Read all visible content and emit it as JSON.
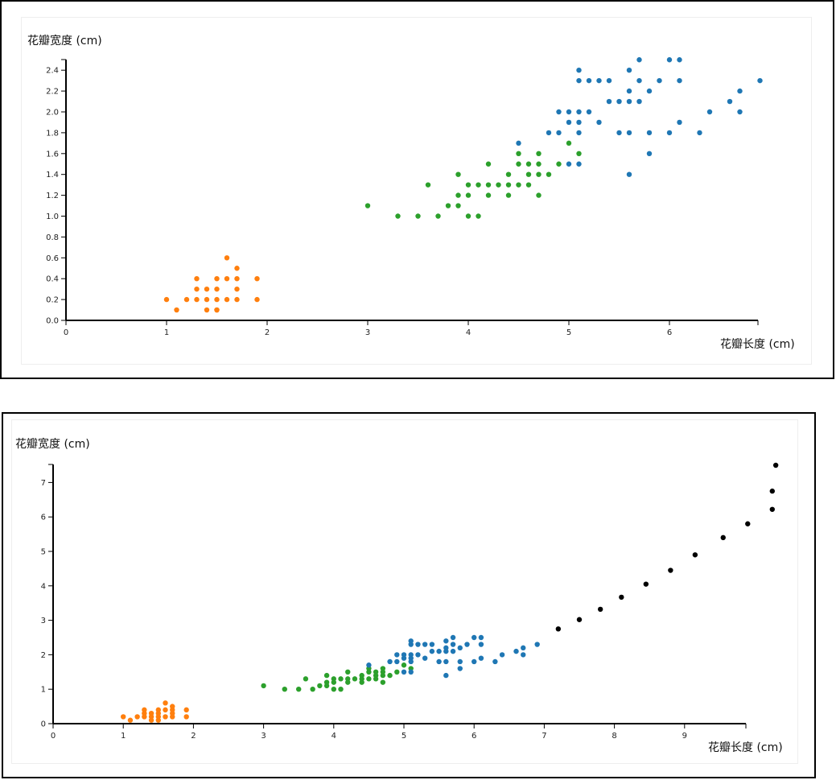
{
  "colors": {
    "setosa": "#ff7f0e",
    "versicolor": "#2ca02c",
    "virginica": "#1f77b4",
    "extra": "#000000"
  },
  "chart_data": [
    {
      "type": "scatter",
      "xlabel": "花瓣长度 (cm)",
      "ylabel": "花瓣宽度 (cm)",
      "xlim": [
        0,
        6.9
      ],
      "ylim": [
        0,
        2.5
      ],
      "xticks": [
        "0",
        "1",
        "2",
        "3",
        "4",
        "5",
        "6"
      ],
      "yticks": [
        "0.0",
        "0.2",
        "0.4",
        "0.6",
        "0.8",
        "1.0",
        "1.2",
        "1.4",
        "1.6",
        "1.8",
        "2.0",
        "2.2",
        "2.4"
      ],
      "grid": false,
      "series": [
        {
          "key": "setosa",
          "points": [
            [
              1.0,
              0.2
            ],
            [
              1.1,
              0.1
            ],
            [
              1.2,
              0.2
            ],
            [
              1.3,
              0.2
            ],
            [
              1.3,
              0.3
            ],
            [
              1.3,
              0.4
            ],
            [
              1.4,
              0.1
            ],
            [
              1.4,
              0.2
            ],
            [
              1.4,
              0.3
            ],
            [
              1.5,
              0.1
            ],
            [
              1.5,
              0.1
            ],
            [
              1.5,
              0.2
            ],
            [
              1.5,
              0.3
            ],
            [
              1.5,
              0.4
            ],
            [
              1.6,
              0.2
            ],
            [
              1.6,
              0.4
            ],
            [
              1.6,
              0.6
            ],
            [
              1.7,
              0.2
            ],
            [
              1.7,
              0.3
            ],
            [
              1.7,
              0.4
            ],
            [
              1.7,
              0.5
            ],
            [
              1.9,
              0.2
            ],
            [
              1.9,
              0.4
            ]
          ]
        },
        {
          "key": "versicolor",
          "points": [
            [
              3.0,
              1.1
            ],
            [
              3.3,
              1.0
            ],
            [
              3.5,
              1.0
            ],
            [
              3.6,
              1.3
            ],
            [
              3.7,
              1.0
            ],
            [
              3.8,
              1.1
            ],
            [
              3.9,
              1.1
            ],
            [
              3.9,
              1.2
            ],
            [
              3.9,
              1.4
            ],
            [
              4.0,
              1.0
            ],
            [
              4.0,
              1.2
            ],
            [
              4.0,
              1.3
            ],
            [
              4.1,
              1.0
            ],
            [
              4.1,
              1.3
            ],
            [
              4.2,
              1.2
            ],
            [
              4.2,
              1.3
            ],
            [
              4.2,
              1.5
            ],
            [
              4.3,
              1.3
            ],
            [
              4.4,
              1.2
            ],
            [
              4.4,
              1.3
            ],
            [
              4.4,
              1.4
            ],
            [
              4.5,
              1.3
            ],
            [
              4.5,
              1.5
            ],
            [
              4.5,
              1.6
            ],
            [
              4.6,
              1.3
            ],
            [
              4.6,
              1.4
            ],
            [
              4.6,
              1.5
            ],
            [
              4.7,
              1.2
            ],
            [
              4.7,
              1.4
            ],
            [
              4.7,
              1.5
            ],
            [
              4.7,
              1.6
            ],
            [
              4.8,
              1.4
            ],
            [
              4.9,
              1.5
            ],
            [
              5.0,
              1.7
            ],
            [
              5.1,
              1.6
            ]
          ]
        },
        {
          "key": "virginica",
          "points": [
            [
              4.5,
              1.7
            ],
            [
              4.8,
              1.8
            ],
            [
              4.9,
              1.8
            ],
            [
              4.9,
              2.0
            ],
            [
              5.0,
              1.5
            ],
            [
              5.0,
              1.9
            ],
            [
              5.0,
              2.0
            ],
            [
              5.1,
              1.5
            ],
            [
              5.1,
              1.8
            ],
            [
              5.1,
              1.9
            ],
            [
              5.1,
              2.0
            ],
            [
              5.1,
              2.3
            ],
            [
              5.1,
              2.4
            ],
            [
              5.2,
              2.0
            ],
            [
              5.2,
              2.3
            ],
            [
              5.3,
              1.9
            ],
            [
              5.3,
              2.3
            ],
            [
              5.4,
              2.1
            ],
            [
              5.4,
              2.3
            ],
            [
              5.5,
              1.8
            ],
            [
              5.5,
              2.1
            ],
            [
              5.6,
              1.4
            ],
            [
              5.6,
              1.8
            ],
            [
              5.6,
              2.1
            ],
            [
              5.6,
              2.2
            ],
            [
              5.6,
              2.4
            ],
            [
              5.7,
              2.1
            ],
            [
              5.7,
              2.3
            ],
            [
              5.7,
              2.5
            ],
            [
              5.8,
              1.6
            ],
            [
              5.8,
              1.8
            ],
            [
              5.8,
              2.2
            ],
            [
              5.9,
              2.3
            ],
            [
              6.0,
              1.8
            ],
            [
              6.0,
              2.5
            ],
            [
              6.1,
              1.9
            ],
            [
              6.1,
              2.3
            ],
            [
              6.1,
              2.5
            ],
            [
              6.3,
              1.8
            ],
            [
              6.4,
              2.0
            ],
            [
              6.6,
              2.1
            ],
            [
              6.7,
              2.0
            ],
            [
              6.7,
              2.2
            ],
            [
              6.9,
              2.3
            ]
          ]
        }
      ]
    },
    {
      "type": "scatter",
      "xlabel": "花瓣长度 (cm)",
      "ylabel": "花瓣宽度 (cm)",
      "xlim": [
        0,
        9.9
      ],
      "ylim": [
        0,
        7.5
      ],
      "xticks": [
        "0",
        "1",
        "2",
        "3",
        "4",
        "5",
        "6",
        "7",
        "8",
        "9"
      ],
      "yticks": [
        "0",
        "1",
        "2",
        "3",
        "4",
        "5",
        "6",
        "7"
      ],
      "grid": false,
      "series": [
        {
          "key": "setosa",
          "points": [
            [
              1.0,
              0.2
            ],
            [
              1.1,
              0.1
            ],
            [
              1.2,
              0.2
            ],
            [
              1.3,
              0.2
            ],
            [
              1.3,
              0.3
            ],
            [
              1.3,
              0.4
            ],
            [
              1.4,
              0.1
            ],
            [
              1.4,
              0.2
            ],
            [
              1.4,
              0.3
            ],
            [
              1.5,
              0.1
            ],
            [
              1.5,
              0.2
            ],
            [
              1.5,
              0.3
            ],
            [
              1.5,
              0.4
            ],
            [
              1.6,
              0.2
            ],
            [
              1.6,
              0.4
            ],
            [
              1.6,
              0.6
            ],
            [
              1.7,
              0.2
            ],
            [
              1.7,
              0.3
            ],
            [
              1.7,
              0.4
            ],
            [
              1.7,
              0.5
            ],
            [
              1.9,
              0.2
            ],
            [
              1.9,
              0.4
            ]
          ]
        },
        {
          "key": "versicolor",
          "points": [
            [
              3.0,
              1.1
            ],
            [
              3.3,
              1.0
            ],
            [
              3.5,
              1.0
            ],
            [
              3.6,
              1.3
            ],
            [
              3.7,
              1.0
            ],
            [
              3.8,
              1.1
            ],
            [
              3.9,
              1.1
            ],
            [
              3.9,
              1.2
            ],
            [
              3.9,
              1.4
            ],
            [
              4.0,
              1.0
            ],
            [
              4.0,
              1.2
            ],
            [
              4.0,
              1.3
            ],
            [
              4.1,
              1.0
            ],
            [
              4.1,
              1.3
            ],
            [
              4.2,
              1.2
            ],
            [
              4.2,
              1.3
            ],
            [
              4.2,
              1.5
            ],
            [
              4.3,
              1.3
            ],
            [
              4.4,
              1.2
            ],
            [
              4.4,
              1.3
            ],
            [
              4.4,
              1.4
            ],
            [
              4.5,
              1.3
            ],
            [
              4.5,
              1.5
            ],
            [
              4.5,
              1.6
            ],
            [
              4.6,
              1.3
            ],
            [
              4.6,
              1.4
            ],
            [
              4.6,
              1.5
            ],
            [
              4.7,
              1.2
            ],
            [
              4.7,
              1.4
            ],
            [
              4.7,
              1.5
            ],
            [
              4.7,
              1.6
            ],
            [
              4.8,
              1.4
            ],
            [
              4.9,
              1.5
            ],
            [
              5.0,
              1.7
            ],
            [
              5.1,
              1.6
            ]
          ]
        },
        {
          "key": "virginica",
          "points": [
            [
              4.5,
              1.7
            ],
            [
              4.8,
              1.8
            ],
            [
              4.9,
              1.8
            ],
            [
              4.9,
              2.0
            ],
            [
              5.0,
              1.5
            ],
            [
              5.0,
              1.9
            ],
            [
              5.0,
              2.0
            ],
            [
              5.1,
              1.5
            ],
            [
              5.1,
              1.8
            ],
            [
              5.1,
              1.9
            ],
            [
              5.1,
              2.0
            ],
            [
              5.1,
              2.3
            ],
            [
              5.1,
              2.4
            ],
            [
              5.2,
              2.0
            ],
            [
              5.2,
              2.3
            ],
            [
              5.3,
              1.9
            ],
            [
              5.3,
              2.3
            ],
            [
              5.4,
              2.1
            ],
            [
              5.4,
              2.3
            ],
            [
              5.5,
              1.8
            ],
            [
              5.5,
              2.1
            ],
            [
              5.6,
              1.4
            ],
            [
              5.6,
              1.8
            ],
            [
              5.6,
              2.1
            ],
            [
              5.6,
              2.2
            ],
            [
              5.6,
              2.4
            ],
            [
              5.7,
              2.1
            ],
            [
              5.7,
              2.3
            ],
            [
              5.7,
              2.5
            ],
            [
              5.8,
              1.6
            ],
            [
              5.8,
              1.8
            ],
            [
              5.8,
              2.2
            ],
            [
              5.9,
              2.3
            ],
            [
              6.0,
              1.8
            ],
            [
              6.0,
              2.5
            ],
            [
              6.1,
              1.9
            ],
            [
              6.1,
              2.3
            ],
            [
              6.1,
              2.5
            ],
            [
              6.3,
              1.8
            ],
            [
              6.4,
              2.0
            ],
            [
              6.6,
              2.1
            ],
            [
              6.7,
              2.0
            ],
            [
              6.7,
              2.2
            ],
            [
              6.9,
              2.3
            ]
          ]
        },
        {
          "key": "extra",
          "points": [
            [
              7.2,
              2.75
            ],
            [
              7.5,
              3.02
            ],
            [
              7.8,
              3.32
            ],
            [
              8.1,
              3.67
            ],
            [
              8.45,
              4.05
            ],
            [
              8.8,
              4.45
            ],
            [
              9.15,
              4.9
            ],
            [
              9.55,
              5.4
            ],
            [
              9.9,
              5.8
            ],
            [
              10.25,
              6.22
            ],
            [
              10.25,
              6.75
            ],
            [
              10.3,
              7.5
            ]
          ]
        }
      ]
    }
  ]
}
